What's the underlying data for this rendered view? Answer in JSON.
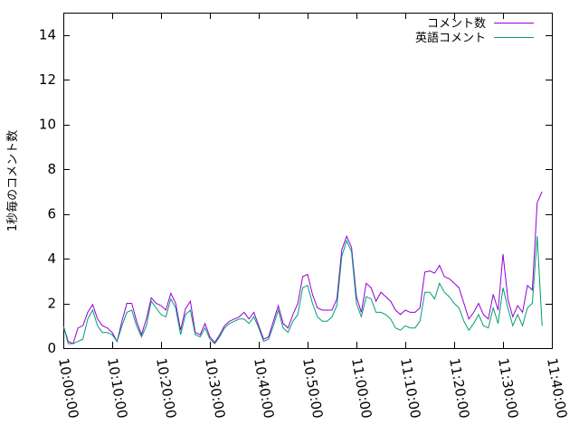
{
  "chart_data": {
    "type": "line",
    "ylabel": "1秒毎のコメント数",
    "xlabel": "",
    "ylim": [
      0,
      15
    ],
    "yticks": [
      0,
      2,
      4,
      6,
      8,
      10,
      12,
      14
    ],
    "xlim": [
      "10:00:00",
      "11:40:00"
    ],
    "xticks": [
      "10:00:00",
      "10:10:00",
      "10:20:00",
      "10:30:00",
      "10:40:00",
      "10:50:00",
      "11:00:00",
      "11:10:00",
      "11:20:00",
      "11:30:00",
      "11:40:00"
    ],
    "legend_position": "top-right",
    "series": [
      {
        "name": "コメント数",
        "color": "#9400d3",
        "points": [
          [
            "10:00:00",
            1.0
          ],
          [
            "10:01:00",
            0.3
          ],
          [
            "10:02:00",
            0.2
          ],
          [
            "10:03:00",
            0.9
          ],
          [
            "10:04:00",
            1.0
          ],
          [
            "10:05:00",
            1.6
          ],
          [
            "10:06:00",
            1.95
          ],
          [
            "10:07:00",
            1.3
          ],
          [
            "10:08:00",
            1.0
          ],
          [
            "10:09:00",
            0.9
          ],
          [
            "10:10:00",
            0.7
          ],
          [
            "10:11:00",
            0.3
          ],
          [
            "10:12:00",
            1.2
          ],
          [
            "10:13:00",
            2.0
          ],
          [
            "10:14:00",
            2.0
          ],
          [
            "10:15:00",
            1.2
          ],
          [
            "10:16:00",
            0.6
          ],
          [
            "10:17:00",
            1.3
          ],
          [
            "10:18:00",
            2.25
          ],
          [
            "10:19:00",
            2.0
          ],
          [
            "10:20:00",
            1.9
          ],
          [
            "10:21:00",
            1.7
          ],
          [
            "10:22:00",
            2.45
          ],
          [
            "10:23:00",
            2.0
          ],
          [
            "10:24:00",
            0.8
          ],
          [
            "10:25:00",
            1.75
          ],
          [
            "10:26:00",
            2.1
          ],
          [
            "10:27:00",
            0.7
          ],
          [
            "10:28:00",
            0.6
          ],
          [
            "10:29:00",
            1.1
          ],
          [
            "10:30:00",
            0.5
          ],
          [
            "10:31:00",
            0.25
          ],
          [
            "10:32:00",
            0.6
          ],
          [
            "10:33:00",
            1.0
          ],
          [
            "10:34:00",
            1.2
          ],
          [
            "10:35:00",
            1.3
          ],
          [
            "10:36:00",
            1.4
          ],
          [
            "10:37:00",
            1.6
          ],
          [
            "10:38:00",
            1.3
          ],
          [
            "10:39:00",
            1.6
          ],
          [
            "10:40:00",
            1.0
          ],
          [
            "10:41:00",
            0.4
          ],
          [
            "10:42:00",
            0.5
          ],
          [
            "10:43:00",
            1.2
          ],
          [
            "10:44:00",
            1.9
          ],
          [
            "10:45:00",
            1.1
          ],
          [
            "10:46:00",
            0.9
          ],
          [
            "10:47:00",
            1.5
          ],
          [
            "10:48:00",
            2.0
          ],
          [
            "10:49:00",
            3.2
          ],
          [
            "10:50:00",
            3.3
          ],
          [
            "10:51:00",
            2.4
          ],
          [
            "10:52:00",
            1.8
          ],
          [
            "10:53:00",
            1.7
          ],
          [
            "10:54:00",
            1.7
          ],
          [
            "10:55:00",
            1.7
          ],
          [
            "10:56:00",
            2.2
          ],
          [
            "10:57:00",
            4.4
          ],
          [
            "10:58:00",
            5.0
          ],
          [
            "10:59:00",
            4.5
          ],
          [
            "11:00:00",
            2.3
          ],
          [
            "11:01:00",
            1.6
          ],
          [
            "11:02:00",
            2.9
          ],
          [
            "11:03:00",
            2.7
          ],
          [
            "11:04:00",
            2.1
          ],
          [
            "11:05:00",
            2.5
          ],
          [
            "11:06:00",
            2.3
          ],
          [
            "11:07:00",
            2.1
          ],
          [
            "11:08:00",
            1.7
          ],
          [
            "11:09:00",
            1.5
          ],
          [
            "11:10:00",
            1.7
          ],
          [
            "11:11:00",
            1.6
          ],
          [
            "11:12:00",
            1.6
          ],
          [
            "11:13:00",
            1.8
          ],
          [
            "11:14:00",
            3.4
          ],
          [
            "11:15:00",
            3.45
          ],
          [
            "11:16:00",
            3.35
          ],
          [
            "11:17:00",
            3.7
          ],
          [
            "11:18:00",
            3.2
          ],
          [
            "11:19:00",
            3.1
          ],
          [
            "11:20:00",
            2.9
          ],
          [
            "11:21:00",
            2.7
          ],
          [
            "11:22:00",
            2.0
          ],
          [
            "11:23:00",
            1.3
          ],
          [
            "11:24:00",
            1.6
          ],
          [
            "11:25:00",
            2.0
          ],
          [
            "11:26:00",
            1.5
          ],
          [
            "11:27:00",
            1.3
          ],
          [
            "11:28:00",
            2.4
          ],
          [
            "11:29:00",
            1.7
          ],
          [
            "11:30:00",
            4.2
          ],
          [
            "11:31:00",
            2.2
          ],
          [
            "11:32:00",
            1.4
          ],
          [
            "11:33:00",
            1.9
          ],
          [
            "11:34:00",
            1.6
          ],
          [
            "11:35:00",
            2.8
          ],
          [
            "11:36:00",
            2.6
          ],
          [
            "11:37:00",
            6.5
          ],
          [
            "11:38:00",
            7.0
          ]
        ]
      },
      {
        "name": "英語コメント",
        "color": "#009e73",
        "points": [
          [
            "10:00:00",
            1.0
          ],
          [
            "10:01:00",
            0.2
          ],
          [
            "10:02:00",
            0.2
          ],
          [
            "10:03:00",
            0.3
          ],
          [
            "10:04:00",
            0.4
          ],
          [
            "10:05:00",
            1.3
          ],
          [
            "10:06:00",
            1.7
          ],
          [
            "10:07:00",
            1.0
          ],
          [
            "10:08:00",
            0.7
          ],
          [
            "10:09:00",
            0.7
          ],
          [
            "10:10:00",
            0.6
          ],
          [
            "10:11:00",
            0.3
          ],
          [
            "10:12:00",
            1.0
          ],
          [
            "10:13:00",
            1.6
          ],
          [
            "10:14:00",
            1.7
          ],
          [
            "10:15:00",
            1.0
          ],
          [
            "10:16:00",
            0.5
          ],
          [
            "10:17:00",
            1.0
          ],
          [
            "10:18:00",
            2.1
          ],
          [
            "10:19:00",
            1.8
          ],
          [
            "10:20:00",
            1.5
          ],
          [
            "10:21:00",
            1.4
          ],
          [
            "10:22:00",
            2.2
          ],
          [
            "10:23:00",
            1.8
          ],
          [
            "10:24:00",
            0.6
          ],
          [
            "10:25:00",
            1.5
          ],
          [
            "10:26:00",
            1.7
          ],
          [
            "10:27:00",
            0.6
          ],
          [
            "10:28:00",
            0.5
          ],
          [
            "10:29:00",
            0.9
          ],
          [
            "10:30:00",
            0.4
          ],
          [
            "10:31:00",
            0.2
          ],
          [
            "10:32:00",
            0.5
          ],
          [
            "10:33:00",
            0.9
          ],
          [
            "10:34:00",
            1.1
          ],
          [
            "10:35:00",
            1.2
          ],
          [
            "10:36:00",
            1.3
          ],
          [
            "10:37:00",
            1.3
          ],
          [
            "10:38:00",
            1.1
          ],
          [
            "10:39:00",
            1.4
          ],
          [
            "10:40:00",
            0.9
          ],
          [
            "10:41:00",
            0.3
          ],
          [
            "10:42:00",
            0.4
          ],
          [
            "10:43:00",
            1.0
          ],
          [
            "10:44:00",
            1.7
          ],
          [
            "10:45:00",
            0.9
          ],
          [
            "10:46:00",
            0.7
          ],
          [
            "10:47:00",
            1.2
          ],
          [
            "10:48:00",
            1.5
          ],
          [
            "10:49:00",
            2.7
          ],
          [
            "10:50:00",
            2.8
          ],
          [
            "10:51:00",
            2.0
          ],
          [
            "10:52:00",
            1.4
          ],
          [
            "10:53:00",
            1.2
          ],
          [
            "10:54:00",
            1.2
          ],
          [
            "10:55:00",
            1.4
          ],
          [
            "10:56:00",
            1.9
          ],
          [
            "10:57:00",
            4.1
          ],
          [
            "10:58:00",
            4.8
          ],
          [
            "10:59:00",
            4.3
          ],
          [
            "11:00:00",
            2.0
          ],
          [
            "11:01:00",
            1.4
          ],
          [
            "11:02:00",
            2.3
          ],
          [
            "11:03:00",
            2.2
          ],
          [
            "11:04:00",
            1.6
          ],
          [
            "11:05:00",
            1.6
          ],
          [
            "11:06:00",
            1.5
          ],
          [
            "11:07:00",
            1.3
          ],
          [
            "11:08:00",
            0.9
          ],
          [
            "11:09:00",
            0.8
          ],
          [
            "11:10:00",
            1.0
          ],
          [
            "11:11:00",
            0.9
          ],
          [
            "11:12:00",
            0.9
          ],
          [
            "11:13:00",
            1.2
          ],
          [
            "11:14:00",
            2.5
          ],
          [
            "11:15:00",
            2.5
          ],
          [
            "11:16:00",
            2.2
          ],
          [
            "11:17:00",
            2.9
          ],
          [
            "11:18:00",
            2.5
          ],
          [
            "11:19:00",
            2.3
          ],
          [
            "11:20:00",
            2.0
          ],
          [
            "11:21:00",
            1.8
          ],
          [
            "11:22:00",
            1.2
          ],
          [
            "11:23:00",
            0.8
          ],
          [
            "11:24:00",
            1.1
          ],
          [
            "11:25:00",
            1.5
          ],
          [
            "11:26:00",
            1.0
          ],
          [
            "11:27:00",
            0.9
          ],
          [
            "11:28:00",
            1.8
          ],
          [
            "11:29:00",
            1.1
          ],
          [
            "11:30:00",
            2.7
          ],
          [
            "11:31:00",
            1.8
          ],
          [
            "11:32:00",
            1.0
          ],
          [
            "11:33:00",
            1.5
          ],
          [
            "11:34:00",
            1.0
          ],
          [
            "11:35:00",
            1.8
          ],
          [
            "11:36:00",
            2.0
          ],
          [
            "11:37:00",
            5.0
          ],
          [
            "11:38:00",
            1.0
          ]
        ]
      }
    ]
  }
}
